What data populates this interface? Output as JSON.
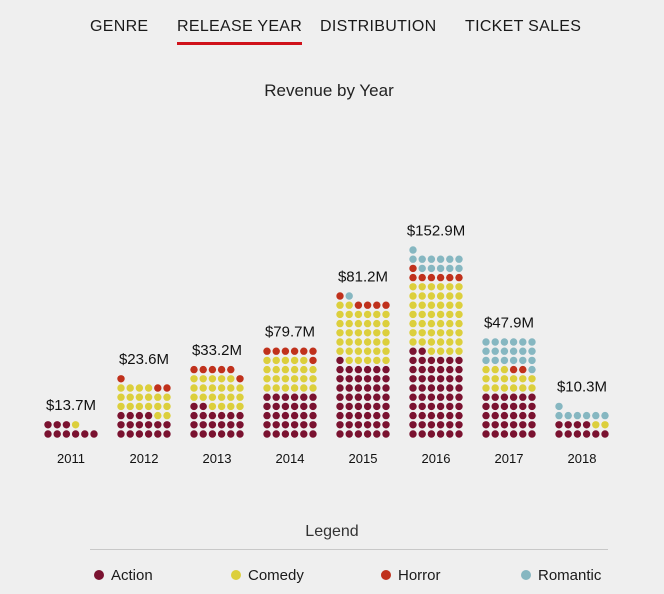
{
  "tabs": [
    {
      "label": "GENRE",
      "active": false
    },
    {
      "label": "RELEASE YEAR",
      "active": true
    },
    {
      "label": "DISTRIBUTION",
      "active": false
    },
    {
      "label": "TICKET SALES",
      "active": false
    }
  ],
  "colors": {
    "Action": "#7a1230",
    "Comedy": "#dccf3c",
    "Horror": "#c0311c",
    "Romantic": "#86b7c1"
  },
  "legend": {
    "title": "Legend",
    "items": [
      "Action",
      "Comedy",
      "Horror",
      "Romantic"
    ]
  },
  "chart_data": {
    "type": "bar",
    "title": "Revenue by Year",
    "categories": [
      "2011",
      "2012",
      "2013",
      "2014",
      "2015",
      "2016",
      "2017",
      "2018"
    ],
    "totals": [
      "$13.7M",
      "$23.6M",
      "$33.2M",
      "$79.7M",
      "$81.2M",
      "$152.9M",
      "$47.9M",
      "$10.3M"
    ],
    "series": [
      {
        "name": "Action",
        "values": [
          9,
          16,
          20,
          30,
          49,
          56,
          30,
          10
        ]
      },
      {
        "name": "Comedy",
        "values": [
          1,
          18,
          21,
          23,
          37,
          46,
          15,
          2
        ]
      },
      {
        "name": "Horror",
        "values": [
          0,
          3,
          6,
          7,
          5,
          7,
          2,
          0
        ]
      },
      {
        "name": "Romantic",
        "values": [
          0,
          0,
          0,
          0,
          1,
          12,
          19,
          7
        ]
      }
    ],
    "unit": "dot"
  }
}
